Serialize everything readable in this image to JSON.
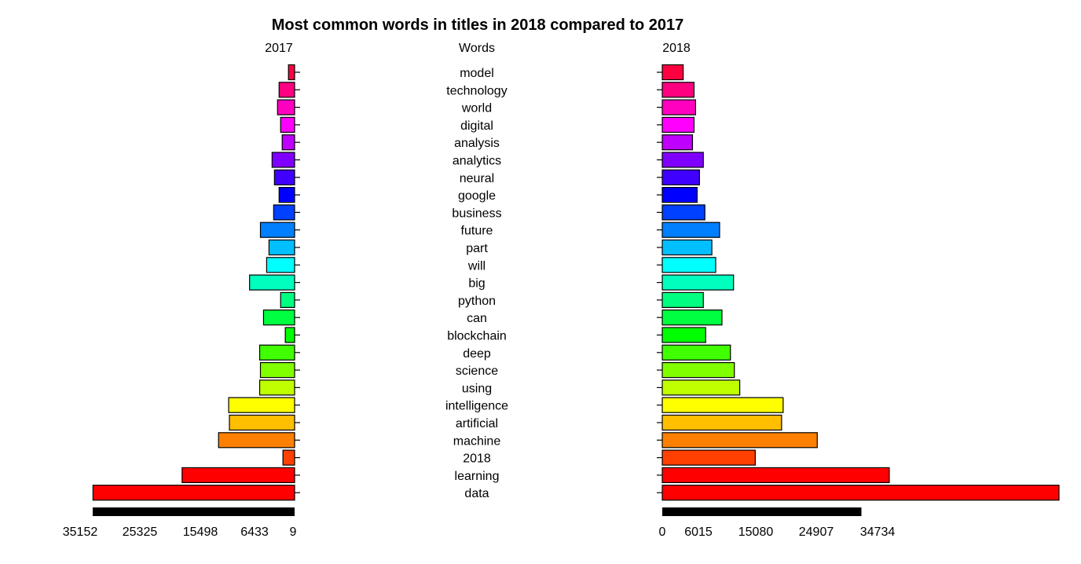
{
  "chart_data": {
    "type": "bar",
    "title": "Most common words in titles in 2018 compared to 2017",
    "column_headers": {
      "left": "2017",
      "middle": "Words",
      "right": "2018"
    },
    "categories": [
      "model",
      "technology",
      "world",
      "digital",
      "analysis",
      "analytics",
      "neural",
      "google",
      "business",
      "future",
      "part",
      "will",
      "big",
      "python",
      "can",
      "blockchain",
      "deep",
      "science",
      "using",
      "intelligence",
      "artificial",
      "machine",
      "2018",
      "learning",
      "data"
    ],
    "series": [
      {
        "name": "2017",
        "values": [
          1066,
          2700,
          2970,
          2430,
          2160,
          3920,
          3510,
          2700,
          3650,
          5950,
          4460,
          4870,
          7840,
          2430,
          5410,
          1620,
          6080,
          5950,
          6080,
          11480,
          11350,
          13240,
          2030,
          19590,
          35100
        ]
      },
      {
        "name": "2018",
        "values": [
          3650,
          5540,
          5810,
          5540,
          5270,
          7160,
          6490,
          6080,
          7430,
          10000,
          8650,
          9320,
          12430,
          7160,
          10410,
          7570,
          11890,
          12570,
          13510,
          21080,
          20810,
          27030,
          16220,
          39590,
          69190
        ]
      }
    ],
    "colors": [
      "#ff0040",
      "#ff0080",
      "#ff00c0",
      "#ff00ff",
      "#bf00ff",
      "#8000ff",
      "#4000ff",
      "#0000ff",
      "#0040ff",
      "#0080ff",
      "#00bfff",
      "#00ffff",
      "#00ffbf",
      "#00ff80",
      "#00ff40",
      "#00ff00",
      "#40ff00",
      "#80ff00",
      "#bfff00",
      "#ffff00",
      "#ffbf00",
      "#ff8000",
      "#ff4000",
      "#ff0000"
    ],
    "left_axis": {
      "direction": "reversed",
      "xlim": [
        0,
        35152
      ],
      "ticks": [
        35152,
        25325,
        15498,
        6433,
        9
      ]
    },
    "right_axis": {
      "xlim": [
        0,
        69190
      ],
      "ticks": [
        0,
        6015,
        15080,
        24907,
        34734
      ]
    }
  }
}
